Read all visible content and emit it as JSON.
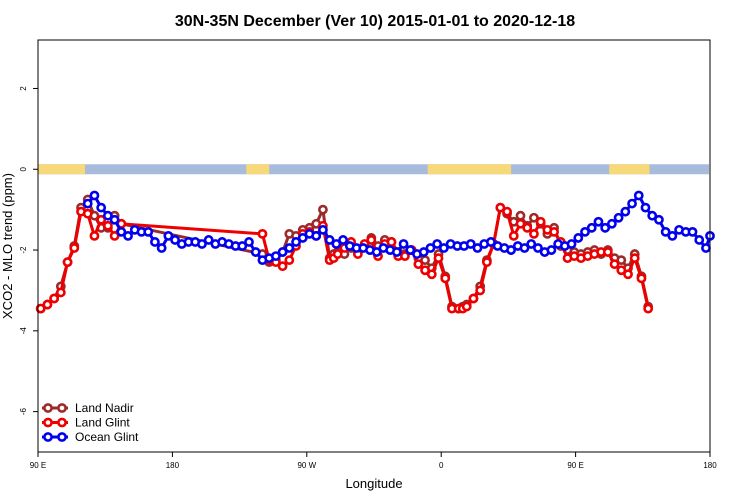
{
  "chart_data": {
    "type": "line",
    "title": "30N-35N December (Ver 10)   2015-01-01 to 2020-12-18",
    "xlabel": "Longitude",
    "ylabel": "XCO2 - MLO trend (ppm)",
    "xlim": [
      0,
      500
    ],
    "ylim": [
      -7,
      3.2
    ],
    "xticks": [
      {
        "value": 0,
        "label": "90 E"
      },
      {
        "value": 100,
        "label": "180"
      },
      {
        "value": 200,
        "label": "90 W"
      },
      {
        "value": 300,
        "label": "0"
      },
      {
        "value": 400,
        "label": "90 E"
      },
      {
        "value": 500,
        "label": "180"
      }
    ],
    "yticks": [
      {
        "value": 2,
        "label": "2"
      },
      {
        "value": 0,
        "label": "0"
      },
      {
        "value": -2,
        "label": "-2"
      },
      {
        "value": -4,
        "label": "-4"
      },
      {
        "value": -6,
        "label": "-6"
      }
    ],
    "legend_position": "bottom-left",
    "landmask": {
      "y": 0,
      "ocean_color": "#a7bbdc",
      "land_color": "#f7d97a",
      "land_ranges": [
        [
          0,
          35
        ],
        [
          155,
          172
        ],
        [
          290,
          352
        ],
        [
          425,
          455
        ]
      ]
    },
    "series": [
      {
        "name": "Land Nadir",
        "color": "#9b2a2a",
        "x": [
          2,
          7,
          12,
          17,
          22,
          27,
          32,
          37,
          42,
          47,
          52,
          57,
          62,
          167,
          172,
          177,
          182,
          187,
          192,
          197,
          202,
          207,
          212,
          217,
          220,
          223,
          228,
          233,
          238,
          243,
          248,
          253,
          258,
          263,
          268,
          273,
          278,
          283,
          288,
          293,
          298,
          303,
          308,
          313,
          316,
          319,
          324,
          329,
          334,
          339,
          344,
          349,
          354,
          359,
          364,
          369,
          374,
          379,
          384,
          389,
          394,
          399,
          404,
          409,
          414,
          419,
          424,
          429,
          434,
          439,
          444,
          449,
          454
        ],
        "y": [
          -3.45,
          -3.35,
          -3.2,
          -2.9,
          -2.3,
          -1.9,
          -0.95,
          -0.75,
          -1.15,
          -1.45,
          -1.45,
          -1.15,
          -1.35,
          -2.1,
          -2.3,
          -2.25,
          -2.05,
          -1.6,
          -1.65,
          -1.5,
          -1.45,
          -1.35,
          -1.0,
          -2.2,
          -2.1,
          -2.05,
          -2.1,
          -1.95,
          -2.05,
          -1.9,
          -1.7,
          -1.9,
          -1.75,
          -1.8,
          -2.05,
          -2.1,
          -2.0,
          -2.2,
          -2.25,
          -2.45,
          -2.1,
          -2.65,
          -3.4,
          -3.45,
          -3.4,
          -3.35,
          -3.2,
          -2.9,
          -2.25,
          -1.85,
          -0.95,
          -1.1,
          -1.3,
          -1.15,
          -1.4,
          -1.2,
          -1.35,
          -1.6,
          -1.45,
          -1.9,
          -2.0,
          -2.05,
          -2.1,
          -2.05,
          -2.0,
          -2.1,
          -2.0,
          -2.2,
          -2.25,
          -2.45,
          -2.1,
          -2.65,
          -3.4
        ]
      },
      {
        "name": "Land Glint",
        "color": "#ee0000",
        "x": [
          2,
          7,
          12,
          17,
          22,
          27,
          32,
          37,
          42,
          47,
          52,
          57,
          62,
          167,
          172,
          177,
          182,
          187,
          192,
          197,
          202,
          207,
          212,
          217,
          220,
          223,
          228,
          233,
          238,
          243,
          248,
          253,
          258,
          263,
          268,
          273,
          278,
          283,
          288,
          293,
          298,
          303,
          308,
          313,
          316,
          319,
          324,
          329,
          334,
          339,
          344,
          349,
          354,
          359,
          364,
          369,
          374,
          379,
          384,
          389,
          394,
          399,
          404,
          409,
          414,
          419,
          424,
          429,
          434,
          439,
          444,
          449,
          454
        ],
        "y": [
          -3.45,
          -3.35,
          -3.2,
          -3.05,
          -2.3,
          -1.95,
          -1.05,
          -1.1,
          -1.65,
          -1.25,
          -1.4,
          -1.65,
          -1.35,
          -1.6,
          -2.25,
          -2.3,
          -2.4,
          -2.25,
          -1.9,
          -1.6,
          -1.55,
          -1.65,
          -1.4,
          -2.25,
          -2.2,
          -2.1,
          -1.95,
          -1.8,
          -2.1,
          -1.85,
          -1.75,
          -2.15,
          -1.85,
          -1.8,
          -2.15,
          -2.15,
          -2.0,
          -2.35,
          -2.5,
          -2.6,
          -2.2,
          -2.7,
          -3.45,
          -3.45,
          -3.45,
          -3.4,
          -3.2,
          -3.0,
          -2.3,
          -1.85,
          -0.95,
          -1.05,
          -1.65,
          -1.35,
          -1.45,
          -1.6,
          -1.3,
          -1.5,
          -1.55,
          -1.8,
          -2.2,
          -2.15,
          -2.2,
          -2.15,
          -2.1,
          -2.05,
          -2.05,
          -2.35,
          -2.5,
          -2.6,
          -2.2,
          -2.7,
          -3.45
        ]
      },
      {
        "name": "Ocean Glint",
        "color": "#0000ee",
        "x": [
          37,
          42,
          47,
          52,
          57,
          62,
          67,
          72,
          77,
          82,
          87,
          92,
          97,
          102,
          107,
          112,
          117,
          122,
          127,
          132,
          137,
          142,
          147,
          152,
          157,
          162,
          167,
          172,
          177,
          182,
          187,
          192,
          197,
          202,
          207,
          212,
          217,
          222,
          227,
          232,
          237,
          242,
          247,
          252,
          257,
          262,
          267,
          272,
          277,
          282,
          287,
          292,
          297,
          302,
          307,
          312,
          317,
          322,
          327,
          332,
          337,
          342,
          347,
          352,
          357,
          362,
          367,
          372,
          377,
          382,
          387,
          392,
          397,
          402,
          407,
          412,
          417,
          422,
          427,
          432,
          437,
          442,
          447,
          452,
          457,
          462,
          467,
          472,
          477,
          482,
          487,
          492,
          497,
          500
        ],
        "y": [
          -0.85,
          -0.65,
          -0.95,
          -1.15,
          -1.25,
          -1.55,
          -1.65,
          -1.5,
          -1.55,
          -1.55,
          -1.8,
          -1.95,
          -1.65,
          -1.75,
          -1.85,
          -1.8,
          -1.8,
          -1.85,
          -1.75,
          -1.85,
          -1.8,
          -1.85,
          -1.9,
          -1.9,
          -1.8,
          -2.05,
          -2.25,
          -2.2,
          -2.15,
          -2.05,
          -1.95,
          -1.8,
          -1.7,
          -1.6,
          -1.65,
          -1.5,
          -1.75,
          -1.85,
          -1.75,
          -1.9,
          -1.95,
          -1.95,
          -2.0,
          -2.05,
          -1.95,
          -2.0,
          -2.05,
          -1.85,
          -2.0,
          -2.1,
          -2.05,
          -1.95,
          -1.85,
          -1.95,
          -1.85,
          -1.9,
          -1.9,
          -1.85,
          -1.95,
          -1.85,
          -1.8,
          -1.9,
          -1.95,
          -2.0,
          -1.9,
          -1.95,
          -1.85,
          -1.95,
          -2.05,
          -2.0,
          -1.85,
          -1.9,
          -1.85,
          -1.7,
          -1.55,
          -1.45,
          -1.3,
          -1.45,
          -1.35,
          -1.2,
          -1.05,
          -0.85,
          -0.65,
          -0.95,
          -1.15,
          -1.25,
          -1.55,
          -1.65,
          -1.5,
          -1.55,
          -1.55,
          -1.75,
          -1.95,
          -1.65
        ]
      }
    ]
  }
}
